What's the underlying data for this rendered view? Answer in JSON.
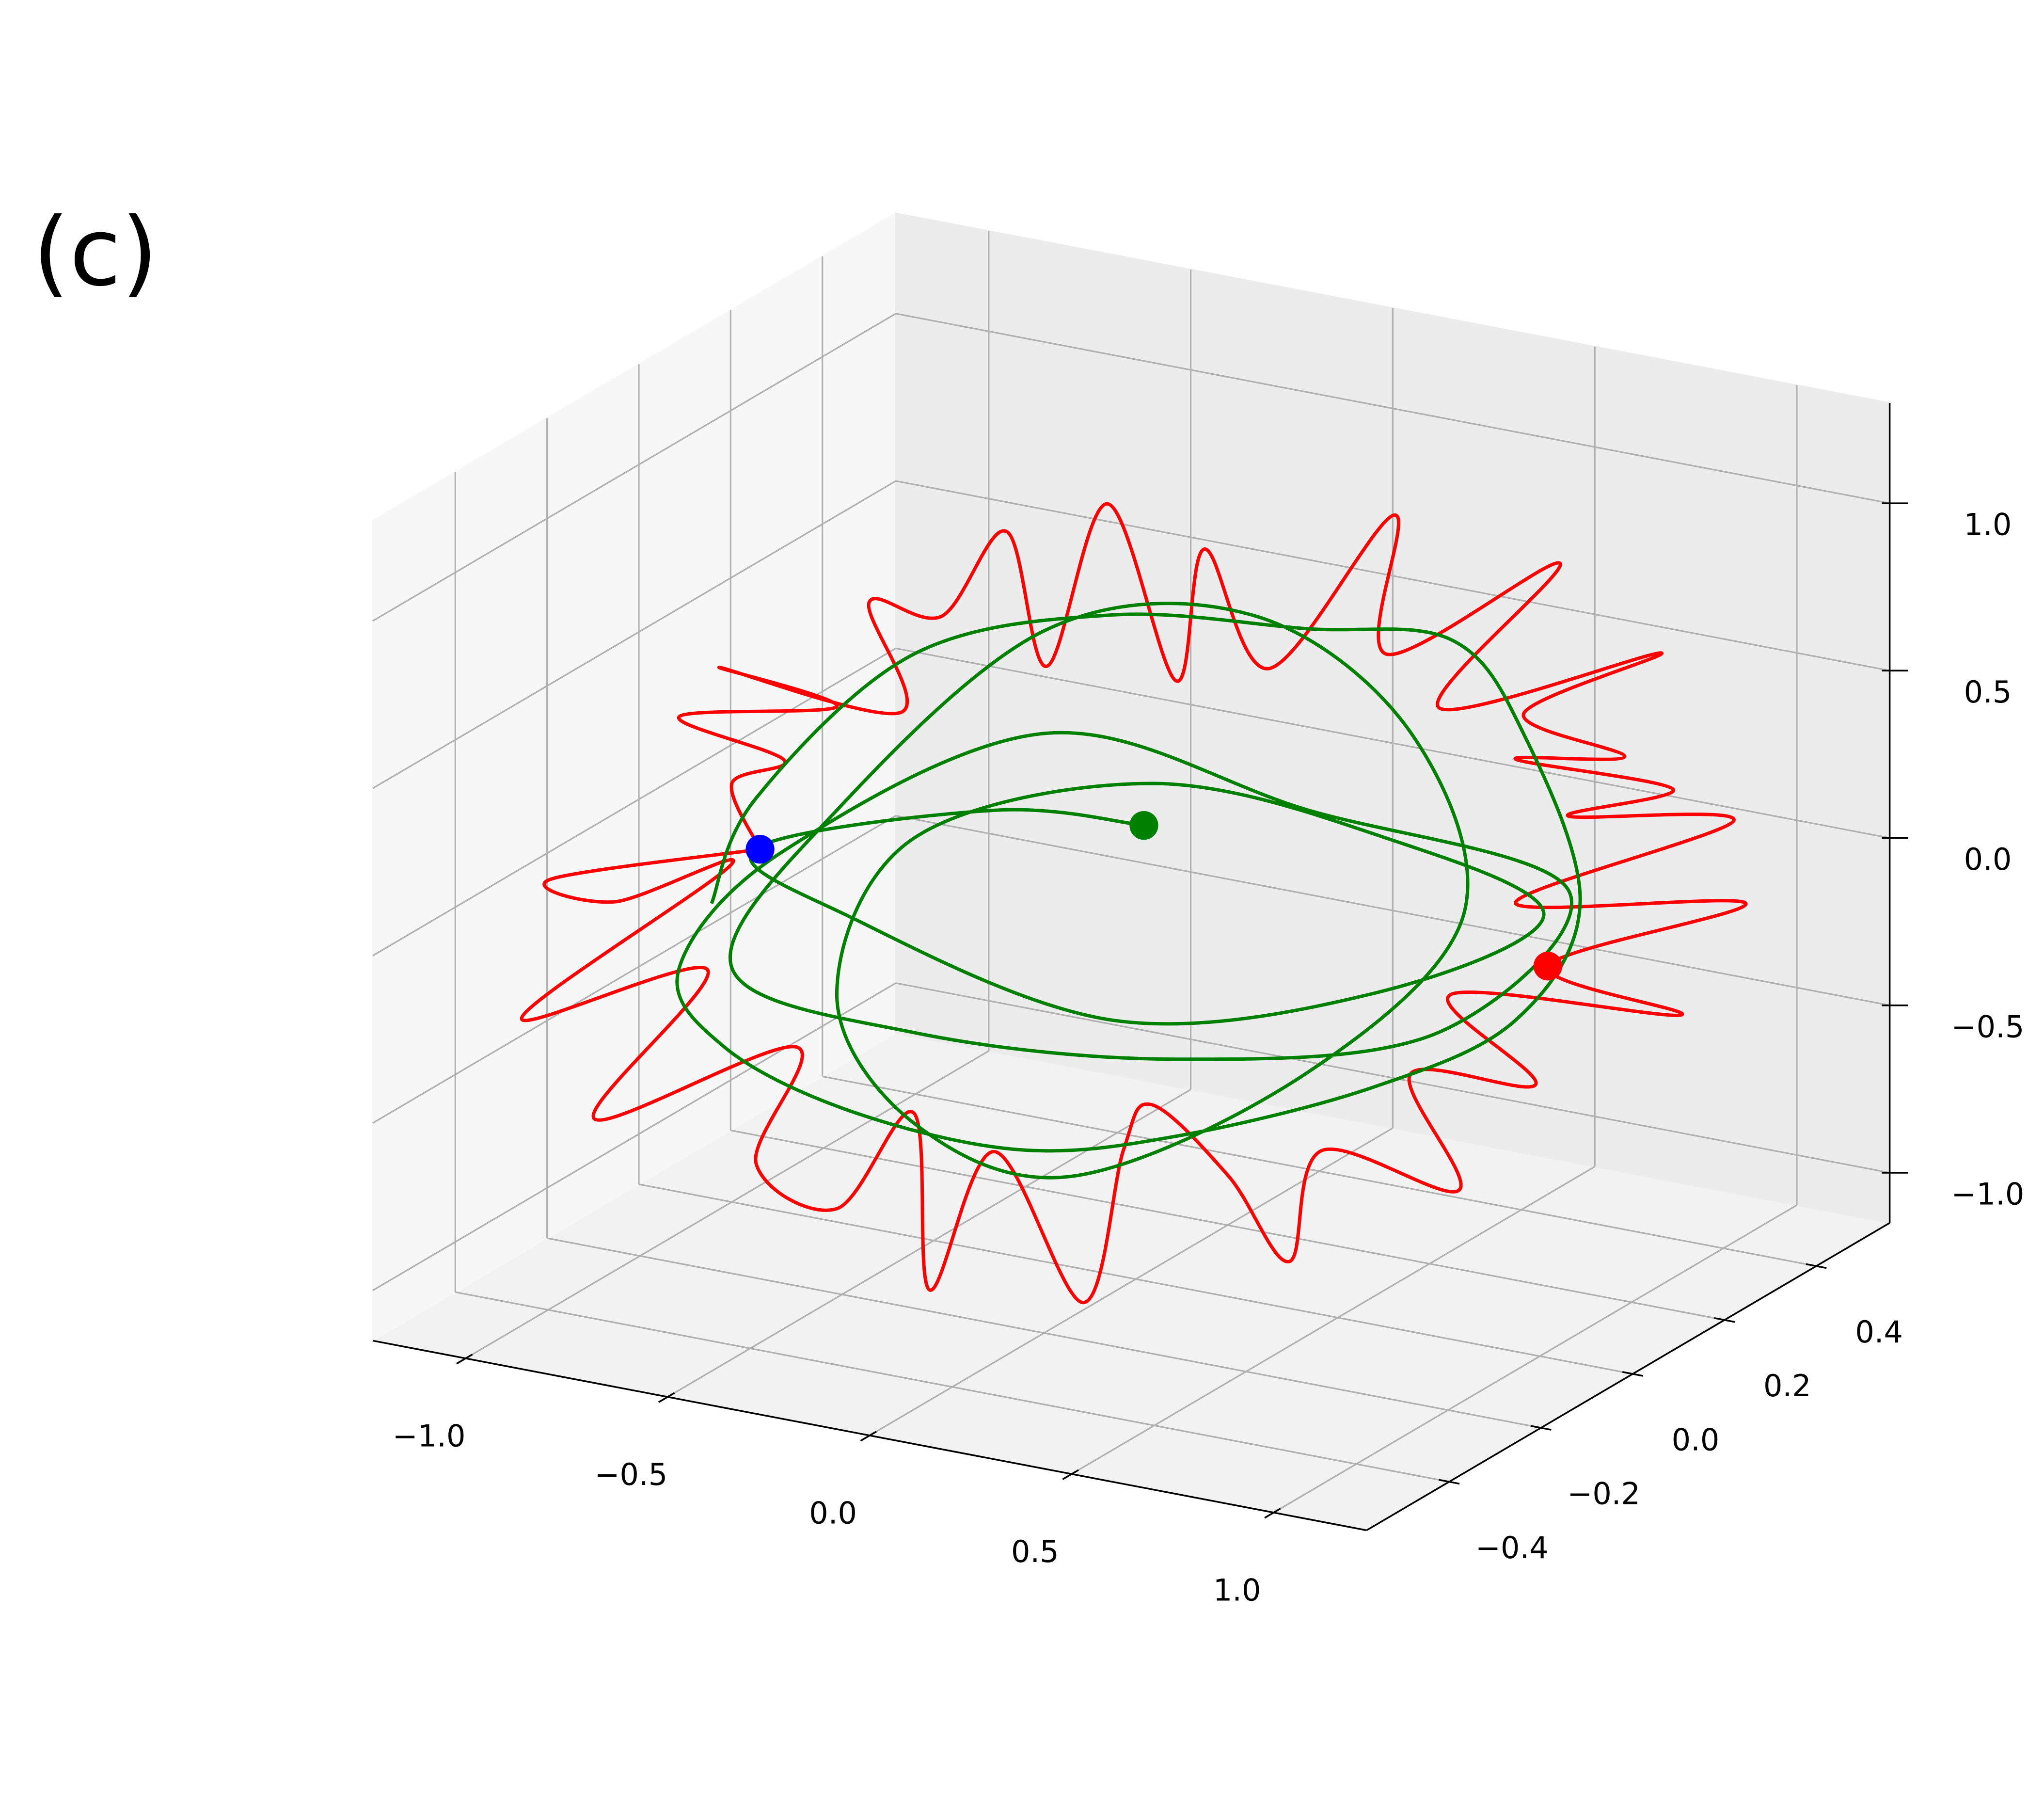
{
  "chart_data": {
    "type": "line3d",
    "panel_label": "(c)",
    "xlim": [
      -1.23,
      1.23
    ],
    "ylim": [
      -0.58,
      0.56
    ],
    "zlim": [
      -1.15,
      1.3
    ],
    "xticks": [
      {
        "value": -1,
        "label": "−1.0"
      },
      {
        "value": -0.5,
        "label": "−0.5"
      },
      {
        "value": 0,
        "label": "0.0"
      },
      {
        "value": 0.5,
        "label": "0.5"
      },
      {
        "value": 1,
        "label": "1.0"
      }
    ],
    "yticks": [
      {
        "value": -0.4,
        "label": "−0.4"
      },
      {
        "value": -0.2,
        "label": "−0.2"
      },
      {
        "value": 0,
        "label": "0.0"
      },
      {
        "value": 0.2,
        "label": "0.2"
      },
      {
        "value": 0.4,
        "label": "0.4"
      }
    ],
    "zticks": [
      {
        "value": -1,
        "label": "−1.0"
      },
      {
        "value": -0.5,
        "label": "−0.5"
      },
      {
        "value": 0,
        "label": "0.0"
      },
      {
        "value": 0.5,
        "label": "0.5"
      },
      {
        "value": 1,
        "label": "1.0"
      }
    ],
    "grid": true,
    "series": [
      {
        "color": "#ff0000",
        "x": [
          -0.93,
          -1.45,
          -1.29,
          -1.0,
          -1.52,
          -1.06,
          -1.34,
          -0.84,
          -0.94,
          -0.74,
          -0.55,
          -0.51,
          -0.35,
          -0.13,
          -0.03,
          0.04,
          0.23,
          0.38,
          0.46,
          0.8,
          0.68,
          0.99,
          0.78,
          1.35,
          1.02,
          1.51,
          0.94,
          1.48,
          1.07,
          1.33,
          0.94,
          1.21,
          0.96,
          1.3,
          0.75,
          1.05,
          0.62,
          0.64,
          0.33,
          0.17,
          0.1,
          -0.07,
          -0.22,
          -0.32,
          -0.48,
          -0.66,
          -0.58,
          -1.03,
          -0.74,
          -1.13,
          -0.87,
          -1.0,
          -0.93
        ],
        "y": [
          0,
          0,
          0,
          0,
          0,
          0,
          0,
          0,
          0,
          0,
          0,
          0,
          0,
          0,
          0,
          0,
          0,
          0,
          0,
          0,
          0,
          0,
          0,
          0,
          0,
          0,
          0,
          0,
          0,
          0,
          0,
          0,
          0,
          0,
          0,
          0,
          0,
          0,
          0,
          0,
          0,
          0,
          0,
          0,
          0,
          0,
          0,
          0,
          0,
          0,
          0,
          0,
          0
        ],
        "z": [
          -0.08,
          -0.29,
          -0.32,
          -0.14,
          -0.72,
          -0.47,
          -0.98,
          -0.65,
          -1.02,
          -1.11,
          -0.78,
          -1.3,
          -0.85,
          -1.25,
          -0.77,
          -0.62,
          -0.79,
          -1.01,
          -0.66,
          -0.7,
          -0.38,
          -0.34,
          -0.12,
          -0.05,
          0.02,
          0.32,
          0.19,
          0.56,
          0.48,
          0.62,
          0.62,
          0.69,
          0.76,
          1.02,
          0.73,
          1.23,
          0.86,
          1.28,
          0.75,
          1.07,
          0.66,
          1.15,
          0.63,
          1.01,
          0.72,
          0.72,
          0.41,
          0.44,
          0.39,
          0.27,
          0.2,
          0.1,
          -0.08
        ]
      },
      {
        "color": "#008000",
        "x": [
          -1.05,
          -0.94,
          -0.55,
          -0.06,
          0.42,
          0.78,
          0.96,
          1.1,
          0.94,
          0.59,
          0.1,
          -0.29,
          -0.71,
          -1.02,
          -1.13,
          -0.87,
          -0.22,
          0.42,
          1.07,
          0.75,
          0.1,
          -0.55,
          -1.0,
          -0.74,
          -0.22,
          0.29,
          0.68,
          0.81,
          0.42,
          -0.16,
          -0.55,
          -0.74,
          -0.55,
          0.04,
          0.62,
          1.01,
          0.59,
          -0.06,
          -0.71,
          -0.94,
          -0.35,
          0.02
        ],
        "y": [
          0,
          0,
          0,
          0,
          0,
          0,
          0,
          0,
          0,
          0,
          0,
          0,
          0,
          0,
          0,
          0,
          0,
          0,
          0,
          0,
          0,
          0,
          0,
          0,
          0,
          0,
          0,
          0,
          0,
          0,
          0,
          0,
          0,
          0,
          0,
          0,
          0,
          0,
          0,
          0,
          0,
          0
        ],
        "z": [
          -0.27,
          0.07,
          0.59,
          0.82,
          0.89,
          0.94,
          0.7,
          0.23,
          -0.16,
          -0.44,
          -0.7,
          -0.83,
          -0.81,
          -0.69,
          -0.48,
          -0.07,
          0.43,
          0.35,
          0.26,
          -0.24,
          -0.47,
          -0.54,
          -0.45,
          0.08,
          0.74,
          0.9,
          0.64,
          0.12,
          -0.44,
          -0.88,
          -0.81,
          -0.47,
          0.04,
          0.34,
          0.31,
          0.17,
          -0.16,
          -0.39,
          -0.23,
          -0.08,
          0.17,
          0.21
        ]
      }
    ],
    "markers": [
      {
        "color": "#0000ff",
        "x": -0.93,
        "y": 0,
        "z": -0.08
      },
      {
        "color": "#ff0000",
        "x": 1.02,
        "y": 0,
        "z": 0.02
      },
      {
        "color": "#008000",
        "x": 0.02,
        "y": 0,
        "z": 0.21
      }
    ]
  }
}
